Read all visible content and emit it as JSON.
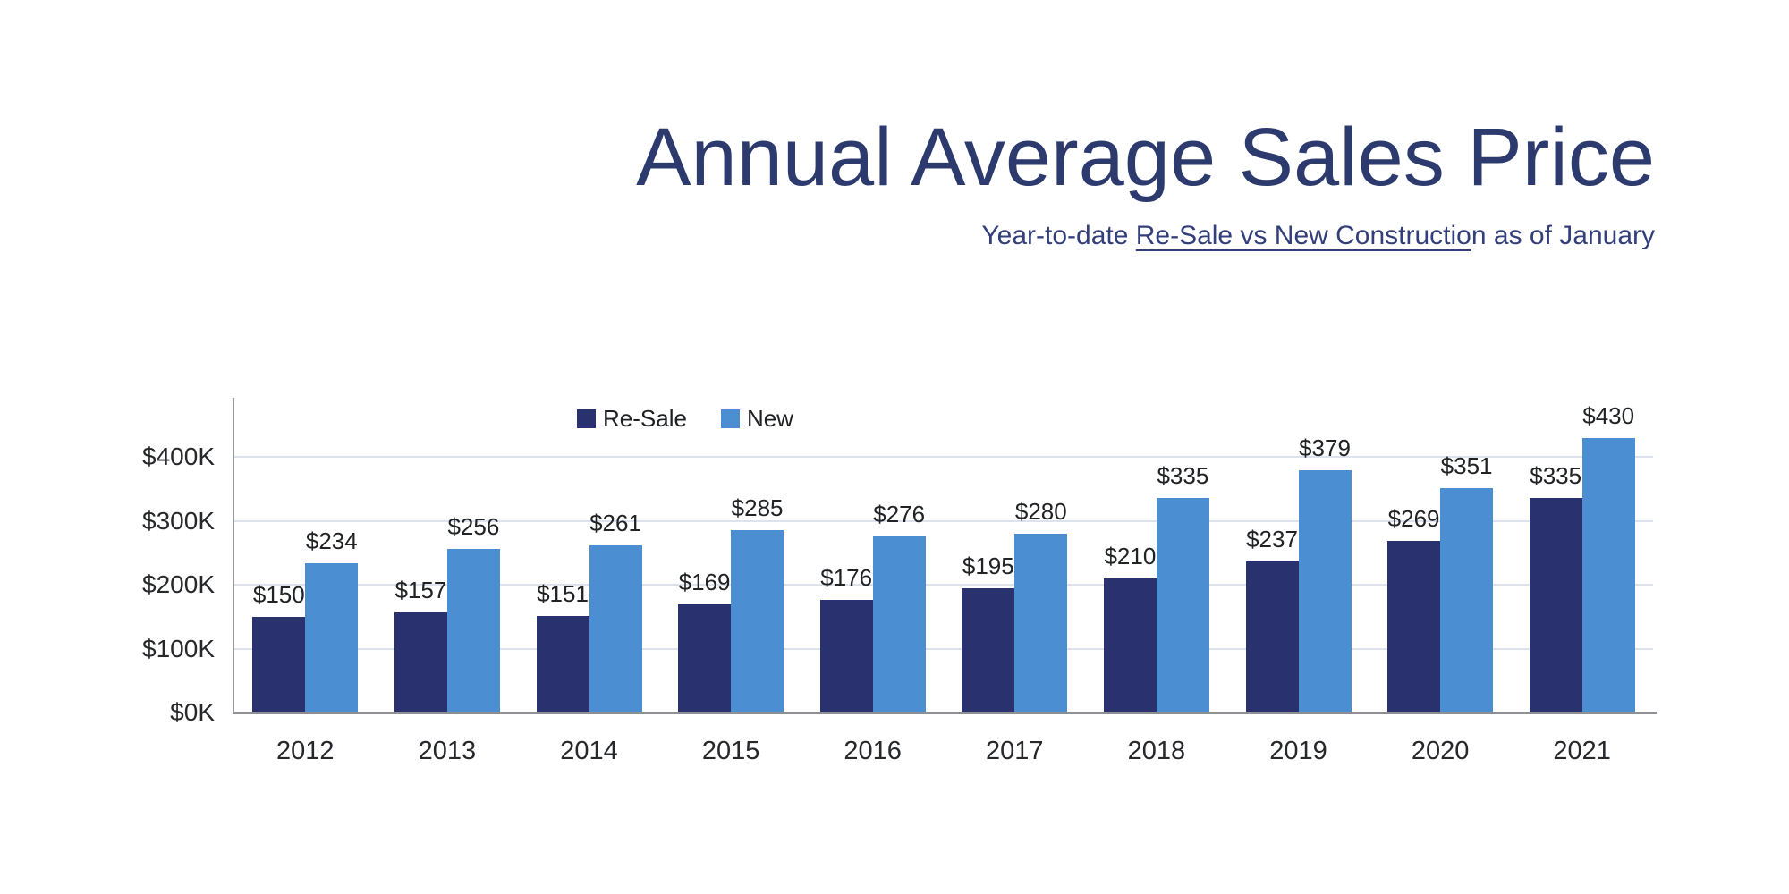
{
  "header": {
    "title": "Annual Average Sales Price",
    "subtitle_prefix": "Year-to-date ",
    "subtitle_underlined": "Re-Sale vs New Constructio",
    "subtitle_suffix": "n as of January"
  },
  "chart_data": {
    "type": "bar",
    "title": "Annual Average Sales Price",
    "subtitle": "Year-to-date Re-Sale vs New Construction as of January",
    "categories": [
      "2012",
      "2013",
      "2014",
      "2015",
      "2016",
      "2017",
      "2018",
      "2019",
      "2020",
      "2021"
    ],
    "series": [
      {
        "name": "Re-Sale",
        "color": "#2a316f",
        "values": [
          150,
          157,
          151,
          169,
          176,
          195,
          210,
          237,
          269,
          335
        ]
      },
      {
        "name": "New",
        "color": "#4b8fd2",
        "values": [
          234,
          256,
          261,
          285,
          276,
          280,
          335,
          379,
          351,
          430
        ]
      }
    ],
    "value_prefix": "$",
    "unit_note": "values in $K",
    "yticks": [
      {
        "value": 0,
        "label": "$0K"
      },
      {
        "value": 100,
        "label": "$100K"
      },
      {
        "value": 200,
        "label": "$200K"
      },
      {
        "value": 300,
        "label": "$300K"
      },
      {
        "value": 400,
        "label": "$400K"
      }
    ],
    "ylim": [
      0,
      492
    ],
    "xlabel": "",
    "ylabel": "",
    "grid": true,
    "legend_position": "top-inside-left",
    "colors": {
      "title": "#2c3a6e",
      "subtitle": "#333f7a",
      "gridline": "#dce2ee",
      "axis": "#8f9094",
      "tick_text": "#27282b",
      "value_text": "#202225"
    }
  }
}
